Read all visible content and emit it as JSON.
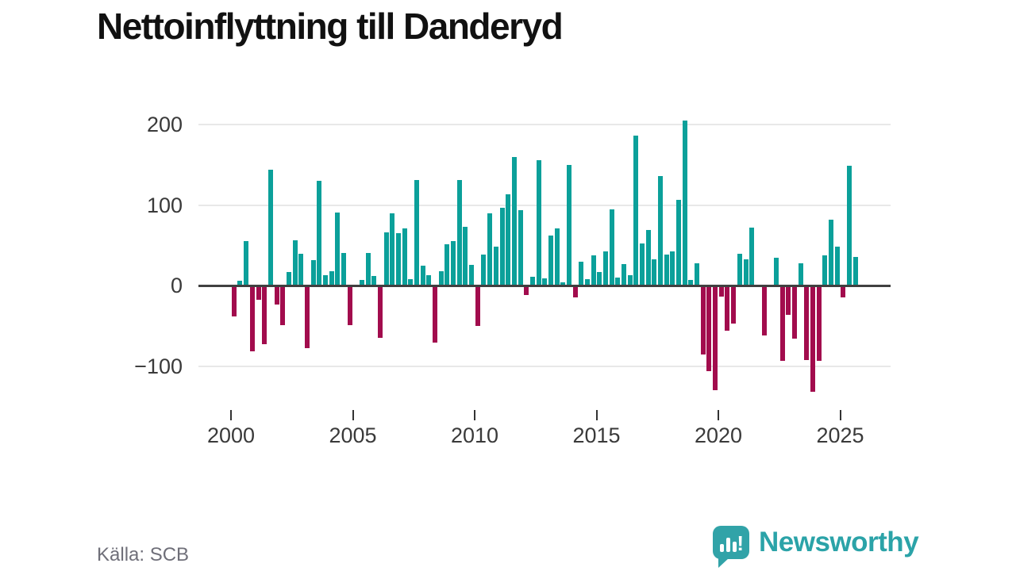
{
  "title": "Nettoinflyttning till Danderyd",
  "source": "Källa: SCB",
  "branding": {
    "logo_text": "Newsworthy",
    "logo_icon": "bar-chart-speech-bubble-icon"
  },
  "colors": {
    "positive_bar": "#0ba09a",
    "negative_bar": "#a20c4d",
    "zero_line": "#404040",
    "gridline": "#e8e8e8",
    "axis_text": "#3a3a3a",
    "title_text": "#111111",
    "source_text": "#6f6f79",
    "brand_teal": "#2ba3a8"
  },
  "chart_data": {
    "type": "bar",
    "title": "Nettoinflyttning till Danderyd",
    "xlabel": "",
    "ylabel": "",
    "frequency": "quarterly",
    "start_period": "2000-Q1",
    "end_period": "2025-Q3",
    "x_tick_labels": [
      "2000",
      "2005",
      "2010",
      "2015",
      "2020",
      "2025"
    ],
    "y_ticks": [
      200,
      100,
      0,
      -100
    ],
    "y_tick_labels": [
      "200",
      "100",
      "0",
      "−100"
    ],
    "ylim": [
      -150,
      215
    ],
    "grid": "horizontal",
    "legend": "none",
    "series": [
      {
        "name": "Nettoinflyttning",
        "values": [
          -38,
          6,
          55,
          -82,
          -18,
          -73,
          144,
          -24,
          -49,
          17,
          56,
          39,
          -78,
          32,
          130,
          13,
          18,
          91,
          40,
          -49,
          0,
          7,
          40,
          12,
          -65,
          66,
          90,
          65,
          71,
          8,
          131,
          25,
          13,
          -71,
          18,
          51,
          55,
          131,
          73,
          26,
          -50,
          38,
          90,
          48,
          97,
          113,
          160,
          94,
          -12,
          11,
          156,
          9,
          62,
          71,
          4,
          150,
          -15,
          30,
          8,
          37,
          17,
          42,
          95,
          10,
          27,
          13,
          186,
          52,
          69,
          33,
          136,
          38,
          42,
          106,
          205,
          7,
          28,
          -86,
          -106,
          -130,
          -14,
          -56,
          -47,
          39,
          33,
          72,
          0,
          -62,
          0,
          34,
          -94,
          -36,
          -66,
          28,
          -93,
          -132,
          -94,
          37,
          82,
          48,
          -15,
          149,
          35
        ]
      }
    ]
  }
}
